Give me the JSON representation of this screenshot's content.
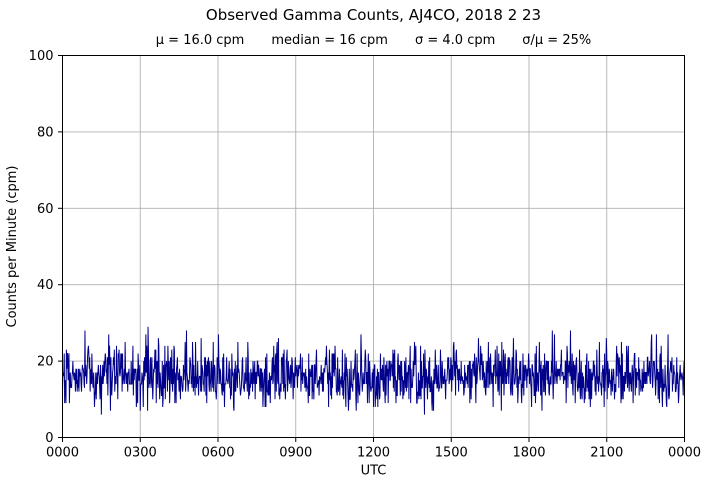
{
  "chart_data": {
    "type": "line",
    "title": "Observed Gamma Counts, AJ4CO, 2018 2 23",
    "stats": {
      "mu": "μ = 16.0 cpm",
      "median": "median = 16 cpm",
      "sigma": "σ = 4.0 cpm",
      "sigma_over_mu": "σ/μ = 25%"
    },
    "xlabel": "UTC",
    "ylabel": "Counts per Minute (cpm)",
    "ylim": [
      0,
      100
    ],
    "yticks": [
      0,
      20,
      40,
      60,
      80,
      100
    ],
    "xticks_minutes": [
      0,
      180,
      360,
      540,
      720,
      900,
      1080,
      1260,
      1440
    ],
    "xtick_labels": [
      "0000",
      "0300",
      "0600",
      "0900",
      "1200",
      "1500",
      "1800",
      "2100",
      "0000"
    ],
    "grid": true,
    "legend": "none",
    "line_color": "#00008B",
    "grid_color": "#b0b0b0",
    "axis_color": "#000000",
    "series": [
      {
        "name": "observed gamma counts",
        "points_per_day": 1440,
        "distribution": "poisson-like counting noise",
        "mean_cpm": 16.0,
        "median_cpm": 16,
        "sigma_cpm": 4.0,
        "sigma_over_mu_pct": 25,
        "observed_min_cpm": 5,
        "observed_max_cpm": 32,
        "seed": 20180223
      }
    ]
  }
}
